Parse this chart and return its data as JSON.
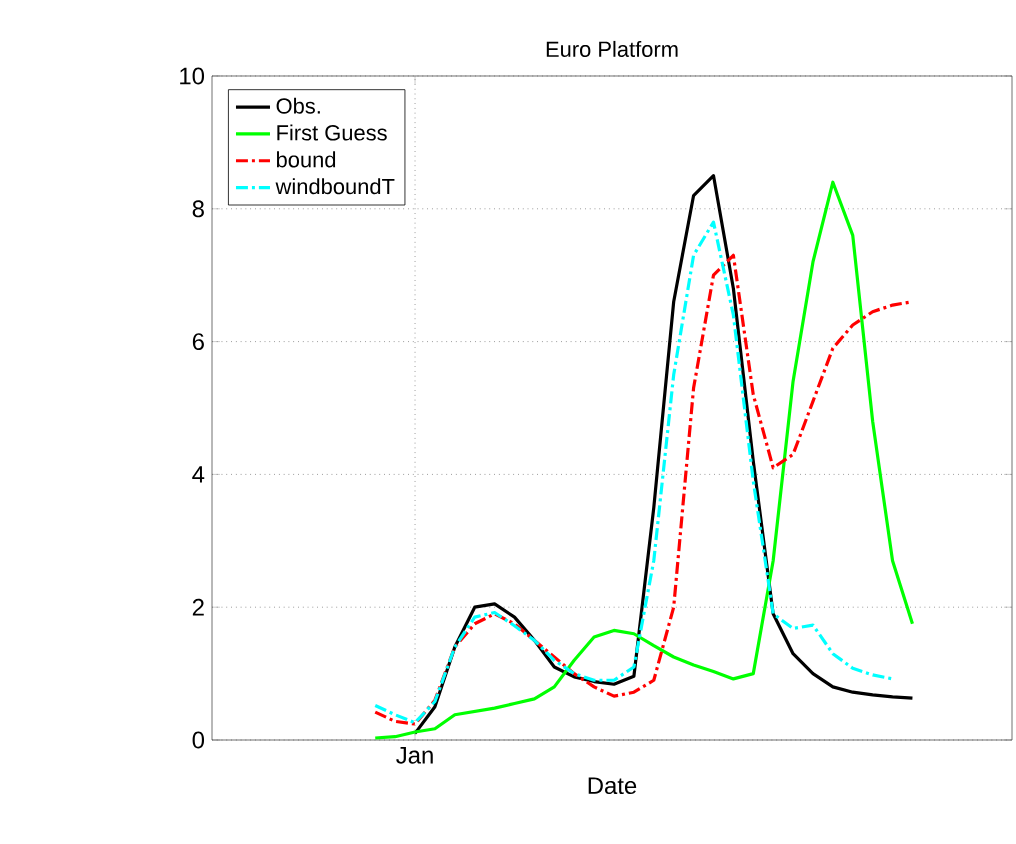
{
  "chart_data": {
    "type": "line",
    "title": "Euro Platform",
    "xlabel": "Date",
    "categories": [
      null,
      null,
      "Jan",
      null,
      null,
      null,
      null,
      null,
      null,
      null,
      null,
      null,
      null,
      null,
      null,
      null,
      null,
      null,
      null,
      null,
      null,
      null,
      null,
      null,
      null,
      null,
      null,
      null
    ],
    "ylim": [
      0,
      10
    ],
    "yticks": [
      0,
      2,
      4,
      6,
      8,
      10
    ],
    "grid": true,
    "legend": "top left",
    "series": [
      {
        "name": "Obs.",
        "color": "#000000",
        "line_style": "solid",
        "values": [
          null,
          null,
          0.1,
          0.5,
          1.4,
          2.0,
          2.05,
          1.85,
          1.5,
          1.1,
          0.95,
          0.88,
          0.84,
          0.96,
          3.5,
          6.6,
          8.2,
          8.5,
          6.8,
          4.2,
          1.9,
          1.3,
          1.0,
          0.8,
          0.72,
          0.68,
          0.65,
          0.63
        ]
      },
      {
        "name": "First Guess",
        "color": "#00ff00",
        "line_style": "solid",
        "values": [
          0.03,
          0.05,
          0.12,
          0.17,
          0.38,
          0.43,
          0.48,
          0.55,
          0.62,
          0.8,
          1.2,
          1.55,
          1.65,
          1.6,
          1.42,
          1.25,
          1.13,
          1.03,
          0.92,
          1.0,
          2.7,
          5.4,
          7.2,
          8.4,
          7.6,
          4.8,
          2.7,
          1.75
        ]
      },
      {
        "name": "bound",
        "color": "#ff0000",
        "line_style": "dashdot",
        "values": [
          0.42,
          0.28,
          0.24,
          0.6,
          1.4,
          1.75,
          1.9,
          1.75,
          1.5,
          1.25,
          1.0,
          0.8,
          0.66,
          0.72,
          0.9,
          2.0,
          5.3,
          7.0,
          7.3,
          5.2,
          4.1,
          4.3,
          5.1,
          5.9,
          6.25,
          6.45,
          6.55,
          6.6
        ]
      },
      {
        "name": "windboundT",
        "color": "#00ffff",
        "line_style": "dashdot",
        "values": [
          0.52,
          0.38,
          0.26,
          0.58,
          1.4,
          1.85,
          1.92,
          1.72,
          1.5,
          1.2,
          1.0,
          0.9,
          0.9,
          1.1,
          2.7,
          5.5,
          7.3,
          7.8,
          6.4,
          3.9,
          1.9,
          1.68,
          1.73,
          1.3,
          1.08,
          0.98,
          0.92,
          null
        ]
      }
    ]
  }
}
